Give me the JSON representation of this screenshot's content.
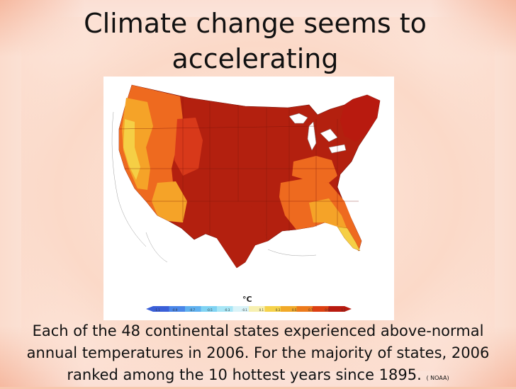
{
  "title": "Climate change seems to accelerating",
  "map": {
    "unit_label": "°C",
    "legend_ticks": [
      "-1.1",
      "-0.9",
      "-0.7",
      "-0.5",
      "-0.3",
      "-0.1",
      "0.1",
      "0.3",
      "0.5",
      "0.7",
      "0.9",
      "1.1"
    ],
    "legend_colors": [
      "#3a5fd8",
      "#4a86e8",
      "#5fb0ef",
      "#7fd3f3",
      "#a7e6f6",
      "#d9f3f8",
      "#f7f0b0",
      "#f5d24a",
      "#f1a928",
      "#ec7a1c",
      "#dc3f12",
      "#b81a0f"
    ],
    "colors": {
      "hottest": "#b3200f",
      "hot": "#d8391a",
      "warm": "#ee6a1f",
      "mild": "#f5a328",
      "slight": "#f5cf45",
      "ocean": "#ffffff"
    }
  },
  "caption": {
    "text": "Each of the 48 continental states experienced above-normal annual temperatures in 2006. For the majority of states, 2006 ranked among the 10 hottest years since 1895.",
    "source": "( NOAA)"
  }
}
